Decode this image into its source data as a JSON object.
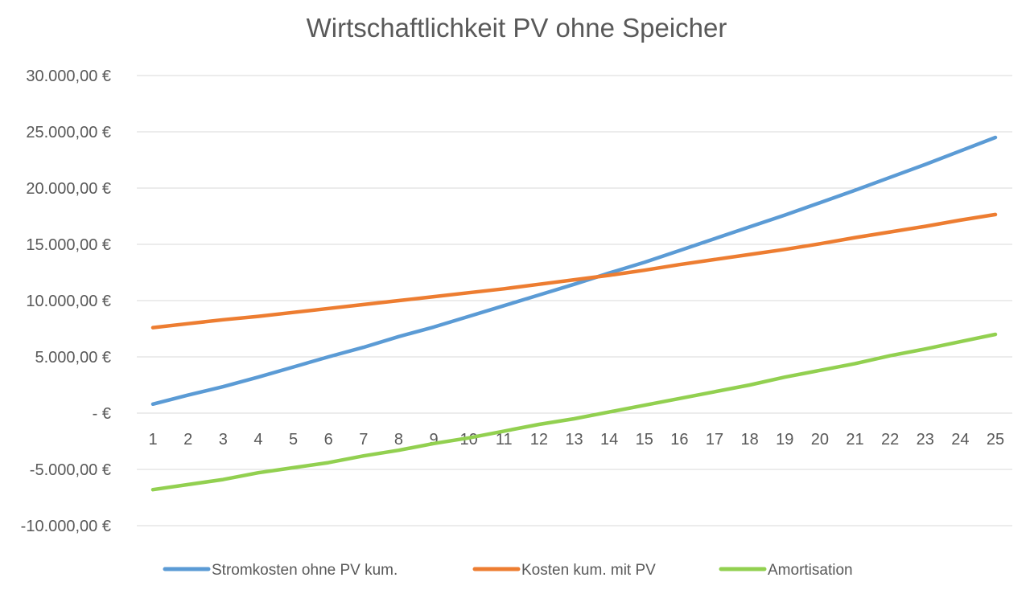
{
  "chart_data": {
    "type": "line",
    "title": "Wirtschaftlichkeit PV ohne Speicher",
    "xlabel": "",
    "ylabel": "",
    "x": [
      1,
      2,
      3,
      4,
      5,
      6,
      7,
      8,
      9,
      10,
      11,
      12,
      13,
      14,
      15,
      16,
      17,
      18,
      19,
      20,
      21,
      22,
      23,
      24,
      25
    ],
    "x_tick_labels": [
      "1",
      "2",
      "3",
      "4",
      "5",
      "6",
      "7",
      "8",
      "9",
      "10",
      "11",
      "12",
      "13",
      "14",
      "15",
      "16",
      "17",
      "18",
      "19",
      "20",
      "21",
      "22",
      "23",
      "24",
      "25"
    ],
    "ylim": [
      -10000,
      30000
    ],
    "y_ticks": [
      30000,
      25000,
      20000,
      15000,
      10000,
      5000,
      0,
      -5000,
      -10000
    ],
    "y_tick_labels": [
      "30.000,00 €",
      "25.000,00 €",
      "20.000,00 €",
      "15.000,00 €",
      "10.000,00 €",
      "5.000,00 €",
      "-  €",
      "-5.000,00 €",
      "-10.000,00 €"
    ],
    "grid": true,
    "legend_position": "bottom",
    "series": [
      {
        "name": "Stromkosten ohne PV kum.",
        "color": "#5b9bd5",
        "values": [
          800,
          1600,
          2350,
          3200,
          4100,
          5000,
          5850,
          6800,
          7650,
          8600,
          9550,
          10500,
          11450,
          12450,
          13400,
          14450,
          15500,
          16550,
          17600,
          18700,
          19800,
          20950,
          22100,
          23300,
          24500
        ]
      },
      {
        "name": "Kosten kum. mit PV",
        "color": "#ed7d31",
        "values": [
          7600,
          7950,
          8300,
          8600,
          8950,
          9300,
          9650,
          10000,
          10350,
          10700,
          11050,
          11450,
          11850,
          12250,
          12700,
          13200,
          13650,
          14100,
          14550,
          15050,
          15600,
          16100,
          16600,
          17150,
          17650
        ]
      },
      {
        "name": "Amortisation",
        "color": "#92d050",
        "values": [
          -6800,
          -6350,
          -5900,
          -5300,
          -4850,
          -4400,
          -3800,
          -3300,
          -2700,
          -2200,
          -1600,
          -1000,
          -500,
          100,
          700,
          1300,
          1900,
          2500,
          3200,
          3800,
          4400,
          5100,
          5700,
          6350,
          7000
        ]
      }
    ]
  }
}
